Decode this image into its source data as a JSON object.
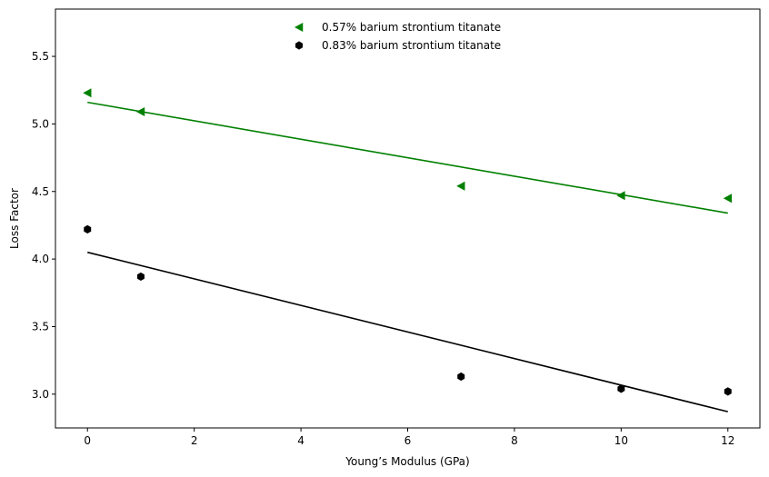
{
  "chart_data": {
    "type": "scatter",
    "title": "",
    "xlabel": "Young’s Modulus (GPa)",
    "ylabel": "Loss Factor",
    "xlim": [
      -0.6,
      12.6
    ],
    "ylim": [
      2.75,
      5.85
    ],
    "xticks": [
      0,
      2,
      4,
      6,
      8,
      10,
      12
    ],
    "yticks": [
      3.0,
      3.5,
      4.0,
      4.5,
      5.0,
      5.5
    ],
    "xtick_labels": [
      "0",
      "2",
      "4",
      "6",
      "8",
      "10",
      "12"
    ],
    "ytick_labels": [
      "3.0",
      "3.5",
      "4.0",
      "4.5",
      "5.0",
      "5.5"
    ],
    "grid": false,
    "legend_position": "top-center",
    "series": [
      {
        "name": "0.57% barium strontium titanate",
        "color": "#008000",
        "marker": "triangle-left",
        "x": [
          0,
          1,
          7,
          10,
          12
        ],
        "y": [
          5.23,
          5.09,
          4.54,
          4.47,
          4.45
        ],
        "fit": {
          "x": [
            0,
            12
          ],
          "y": [
            5.16,
            4.34
          ]
        }
      },
      {
        "name": "0.83% barium strontium titanate",
        "color": "#000000",
        "marker": "hexagon",
        "x": [
          0,
          1,
          7,
          10,
          12
        ],
        "y": [
          4.22,
          3.87,
          3.13,
          3.04,
          3.02
        ],
        "fit": {
          "x": [
            0,
            12
          ],
          "y": [
            4.05,
            2.87
          ]
        }
      }
    ]
  }
}
